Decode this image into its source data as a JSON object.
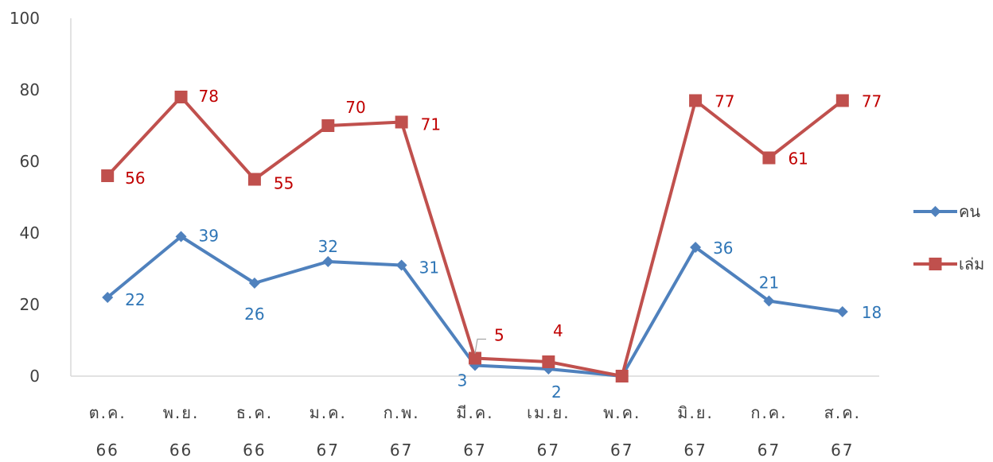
{
  "chart_data": {
    "type": "line",
    "categories": [
      [
        "ต.ค.",
        "66"
      ],
      [
        "พ.ย.",
        "66"
      ],
      [
        "ธ.ค.",
        "66"
      ],
      [
        "ม.ค.",
        "67"
      ],
      [
        "ก.พ.",
        "67"
      ],
      [
        "มี.ค.",
        "67"
      ],
      [
        "เม.ย.",
        "67"
      ],
      [
        "พ.ค.",
        "67"
      ],
      [
        "มิ.ย.",
        "67"
      ],
      [
        "ก.ค.",
        "67"
      ],
      [
        "ส.ค.",
        "67"
      ]
    ],
    "series": [
      {
        "name": "คน",
        "color": "#4F81BD",
        "label_color": "#2E75B6",
        "marker": "diamond",
        "values": [
          22,
          39,
          26,
          32,
          31,
          3,
          2,
          0,
          36,
          21,
          18
        ],
        "labels": [
          "22",
          "39",
          "26",
          "32",
          "31",
          "3",
          "2",
          "",
          "36",
          "21",
          "18"
        ]
      },
      {
        "name": "เล่ม",
        "color": "#C0504D",
        "label_color": "#C00000",
        "marker": "square",
        "values": [
          56,
          78,
          55,
          70,
          71,
          5,
          4,
          0,
          77,
          61,
          77
        ],
        "labels": [
          "56",
          "78",
          "55",
          "70",
          "71",
          "5",
          "4",
          "",
          "77",
          "61",
          "77"
        ]
      }
    ],
    "ylim": [
      0,
      100
    ],
    "yticks": [
      0,
      20,
      40,
      60,
      80,
      100
    ],
    "grid": false,
    "legend_position": "right",
    "title": "",
    "xlabel": "",
    "ylabel": ""
  }
}
